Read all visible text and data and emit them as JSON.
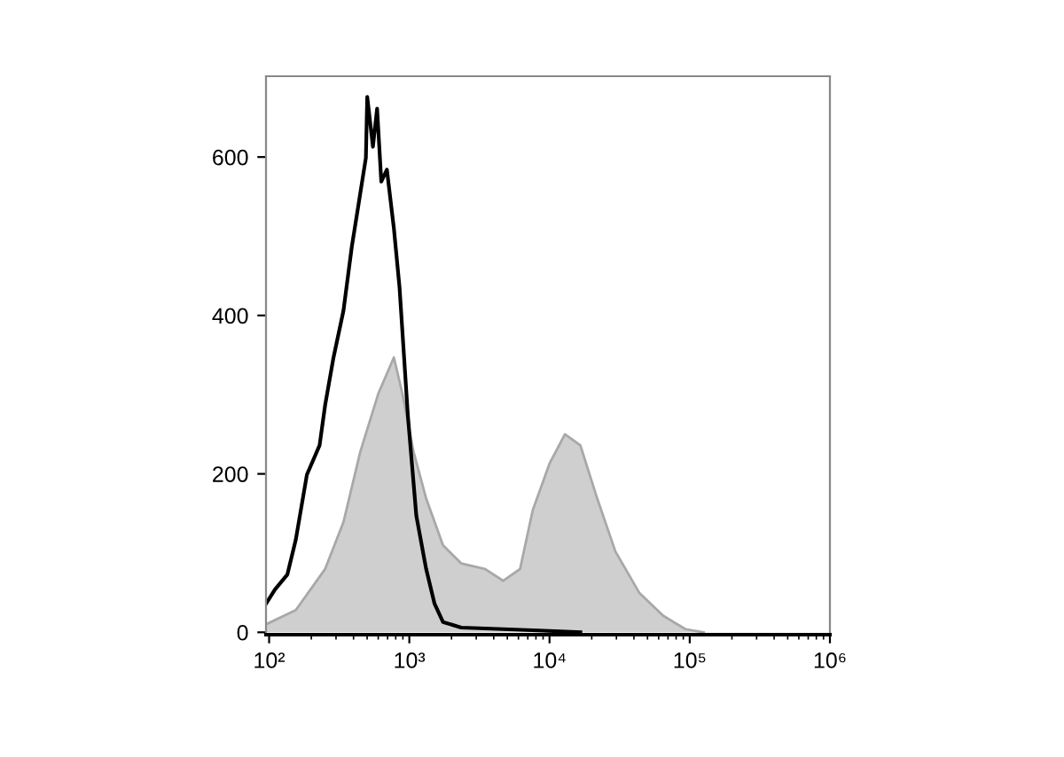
{
  "chart_data": {
    "type": "line",
    "log": "x",
    "grid": false,
    "legend": false,
    "xlim": [
      95,
      1000000
    ],
    "ylim": [
      -3,
      702
    ],
    "xticks": [
      {
        "value": 100,
        "label": "10²"
      },
      {
        "value": 1000,
        "label": "10³"
      },
      {
        "value": 10000,
        "label": "10⁴"
      },
      {
        "value": 100000,
        "label": "10⁵"
      },
      {
        "value": 1000000,
        "label": "10⁶"
      }
    ],
    "yticks": [
      0,
      200,
      400,
      600
    ],
    "series": [
      {
        "type": "area",
        "color": "#cfcfcf",
        "x": [
          95,
          155,
          251,
          339,
          447,
          603,
          776,
          891,
          1072,
          1318,
          1738,
          2344,
          3467,
          4677,
          6166,
          7586,
          10000,
          12880,
          16600,
          21880,
          29510,
          43650,
          64570,
          93330,
          125900
        ],
        "values": [
          10,
          28,
          80,
          139,
          228,
          302,
          347,
          302,
          228,
          169,
          110,
          87,
          80,
          65,
          80,
          154,
          213,
          250,
          236,
          169,
          102,
          50,
          21,
          4,
          0
        ]
      },
      {
        "color": "#000000",
        "x": [
          95,
          110,
          135,
          155,
          186,
          229,
          251,
          288,
          339,
          389,
          427,
          490,
          501,
          550,
          589,
          631,
          692,
          776,
          851,
          977,
          1122,
          1318,
          1514,
          1738,
          2344,
          4677,
          9120,
          16600
        ],
        "values": [
          36,
          54,
          73,
          117,
          199,
          236,
          287,
          347,
          406,
          487,
          532,
          599,
          676,
          613,
          661,
          569,
          584,
          510,
          436,
          273,
          147,
          80,
          36,
          13,
          6,
          4,
          2,
          0
        ]
      }
    ]
  }
}
